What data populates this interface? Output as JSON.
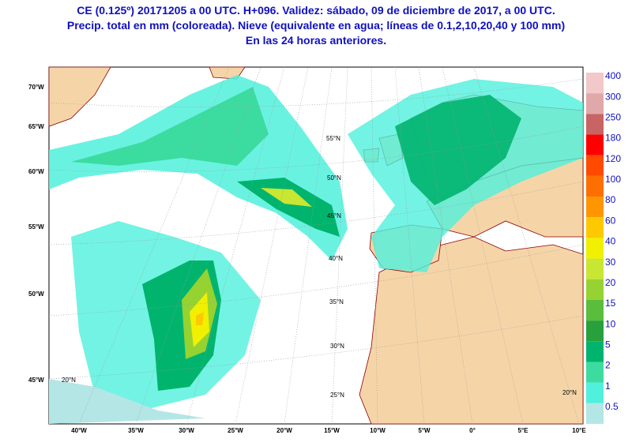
{
  "header": {
    "lines": [
      "CE (0.125º) 20171205 a 00 UTC.  H+096. Validez: sábado, 09 de diciembre de 2017,  a  00 UTC.",
      "Precip. total en mm (coloreada). Nieve (equivalente en agua; líneas de 0.1,2,10,20,40 y 100 mm)",
      "En las 24 horas anteriores."
    ]
  },
  "colorbar": {
    "levels": [
      {
        "label": "400",
        "color": "#f2c8c8"
      },
      {
        "label": "300",
        "color": "#e0a8a8"
      },
      {
        "label": "250",
        "color": "#c86464"
      },
      {
        "label": "180",
        "color": "#ff0000"
      },
      {
        "label": "120",
        "color": "#ff4a00"
      },
      {
        "label": "100",
        "color": "#ff6e00"
      },
      {
        "label": "80",
        "color": "#ff9600"
      },
      {
        "label": "60",
        "color": "#ffc800"
      },
      {
        "label": "40",
        "color": "#f0f000"
      },
      {
        "label": "30",
        "color": "#c8e632"
      },
      {
        "label": "20",
        "color": "#96d232"
      },
      {
        "label": "15",
        "color": "#5abe3c"
      },
      {
        "label": "10",
        "color": "#28a03c"
      },
      {
        "label": "5",
        "color": "#00b46e"
      },
      {
        "label": "2",
        "color": "#3cdca0"
      },
      {
        "label": "1",
        "color": "#50f0dc"
      },
      {
        "label": "0.5",
        "color": "#b4e6e6"
      }
    ]
  },
  "bottom_labels": [
    "40°W",
    "35°W",
    "30°W",
    "25°W",
    "20°W",
    "15°W",
    "10°W",
    "5°W",
    "0°",
    "5°E",
    "10°E"
  ],
  "left_labels": [
    "70°W",
    "65°W",
    "60°W",
    "55°W",
    "50°W",
    "45°W"
  ],
  "lat_labels": [
    "55°N",
    "50°N",
    "45°N",
    "40°N",
    "35°N",
    "30°N",
    "25°N",
    "20°N",
    "20°N"
  ]
}
